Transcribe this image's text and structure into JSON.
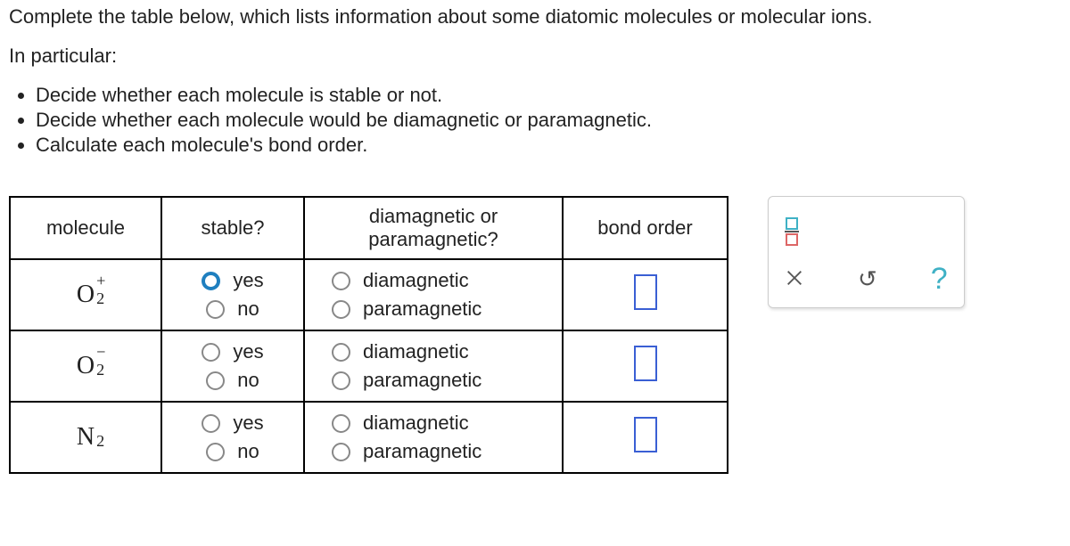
{
  "prompt": {
    "line1": "Complete the table below, which lists information about some diatomic molecules or molecular ions.",
    "line2": "In particular:",
    "bullets": [
      "Decide whether each molecule is stable or not.",
      "Decide whether each molecule would be diamagnetic or paramagnetic.",
      "Calculate each molecule's bond order."
    ]
  },
  "table": {
    "headers": {
      "molecule": "molecule",
      "stable": "stable?",
      "mag": "diamagnetic or paramagnetic?",
      "bond": "bond order"
    },
    "stable_options": {
      "yes": "yes",
      "no": "no"
    },
    "mag_options": {
      "dia": "diamagnetic",
      "para": "paramagnetic"
    },
    "rows": [
      {
        "base": "O",
        "sub": "2",
        "sup": "+",
        "stable_selected": "yes"
      },
      {
        "base": "O",
        "sub": "2",
        "sup": "−",
        "stable_selected": null
      },
      {
        "base": "N",
        "sub": "2",
        "sup": "",
        "stable_selected": null
      }
    ]
  },
  "toolbox": {
    "help": "?"
  }
}
